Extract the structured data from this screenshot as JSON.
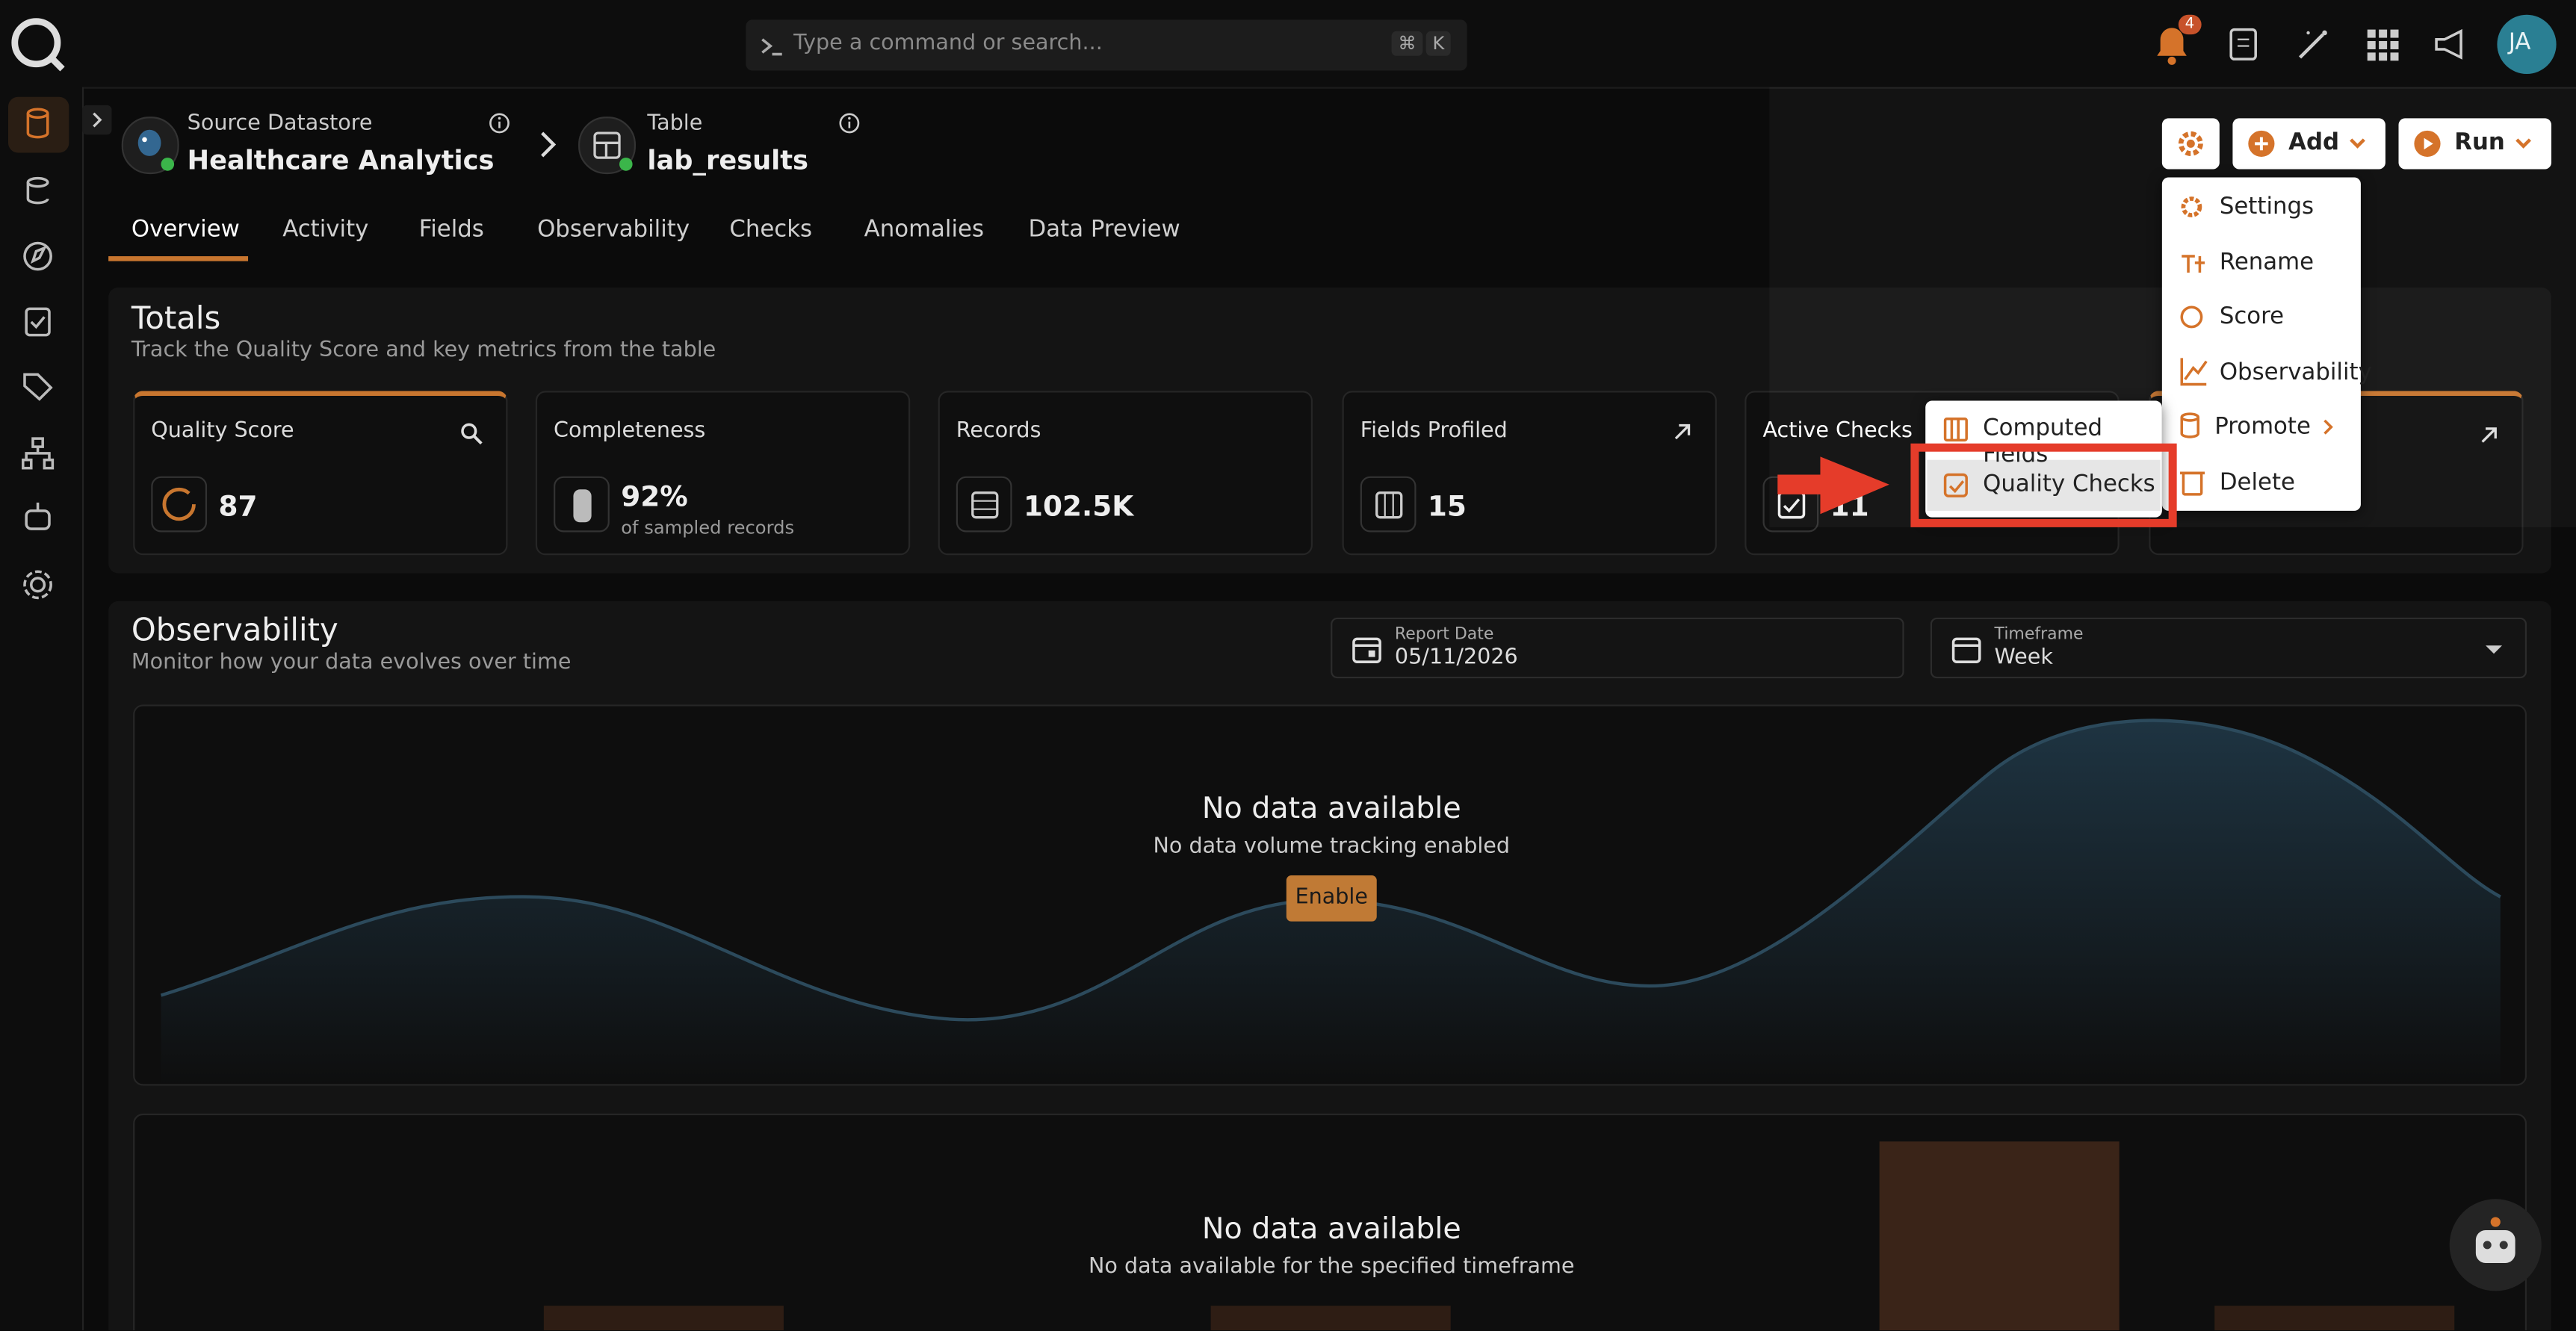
{
  "search": {
    "placeholder": "Type a command or search...",
    "keys": [
      "⌘",
      "K"
    ]
  },
  "notifications": {
    "count": "4"
  },
  "user": {
    "initials": "JA"
  },
  "breadcrumb": {
    "datastore": {
      "label": "Source Datastore",
      "name": "Healthcare Analytics"
    },
    "table": {
      "label": "Table",
      "name": "lab_results"
    }
  },
  "actions": {
    "add": "Add",
    "run": "Run"
  },
  "tabs": [
    "Overview",
    "Activity",
    "Fields",
    "Observability",
    "Checks",
    "Anomalies",
    "Data Preview"
  ],
  "totals": {
    "title": "Totals",
    "subtitle": "Track the Quality Score and key metrics from the table",
    "cards": [
      {
        "label": "Quality Score",
        "value": "87"
      },
      {
        "label": "Completeness",
        "value": "92%",
        "note": "of sampled records"
      },
      {
        "label": "Records",
        "value": "102.5K"
      },
      {
        "label": "Fields Profiled",
        "value": "15"
      },
      {
        "label": "Active Checks",
        "value": "11"
      }
    ]
  },
  "menu": [
    "Settings",
    "Rename",
    "Score",
    "Observability",
    "Promote",
    "Delete"
  ],
  "submenu": [
    "Computed Fields",
    "Quality Checks"
  ],
  "observability": {
    "title": "Observability",
    "subtitle": "Monitor how your data evolves over time",
    "report_date": {
      "label": "Report Date",
      "value": "05/11/2026"
    },
    "timeframe": {
      "label": "Timeframe",
      "value": "Week"
    },
    "volume": {
      "title": "No data available",
      "message": "No data volume tracking enabled",
      "button": "Enable"
    },
    "freshness": {
      "title": "No data available",
      "message": "No data available for the specified timeframe"
    }
  }
}
